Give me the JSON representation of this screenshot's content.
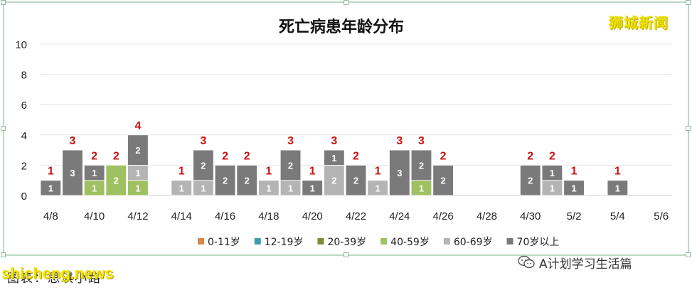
{
  "chart_data": {
    "type": "bar",
    "title": "死亡病患年龄分布",
    "xlabel": "",
    "ylabel": "",
    "ylim": [
      0,
      10
    ],
    "yticks": [
      "0",
      "2",
      "4",
      "6",
      "8",
      "10"
    ],
    "grid": true,
    "legend_position": "bottom",
    "categories": [
      "4/8",
      "4/9",
      "4/10",
      "4/11",
      "4/12",
      "4/13",
      "4/14",
      "4/15",
      "4/16",
      "4/17",
      "4/18",
      "4/19",
      "4/20",
      "4/21",
      "4/22",
      "4/23",
      "4/24",
      "4/25",
      "4/26",
      "4/27",
      "4/28",
      "4/29",
      "4/30",
      "5/1",
      "5/2",
      "5/3",
      "5/4",
      "5/5",
      "5/6"
    ],
    "tick_labels": [
      "4/8",
      "4/10",
      "4/12",
      "4/14",
      "4/16",
      "4/18",
      "4/20",
      "4/22",
      "4/24",
      "4/26",
      "4/28",
      "4/30",
      "5/2",
      "5/4",
      "5/6"
    ],
    "series": [
      {
        "name": "0-11岁",
        "color": "#d9864a",
        "values": [
          0,
          0,
          0,
          0,
          0,
          0,
          0,
          0,
          0,
          0,
          0,
          0,
          0,
          0,
          0,
          0,
          0,
          0,
          0,
          0,
          0,
          0,
          0,
          0,
          0,
          0,
          0,
          0,
          0
        ]
      },
      {
        "name": "12-19岁",
        "color": "#3e9bb0",
        "values": [
          0,
          0,
          0,
          0,
          0,
          0,
          0,
          0,
          0,
          0,
          0,
          0,
          0,
          0,
          0,
          0,
          0,
          0,
          0,
          0,
          0,
          0,
          0,
          0,
          0,
          0,
          0,
          0,
          0
        ]
      },
      {
        "name": "20-39岁",
        "color": "#7a8f3a",
        "values": [
          0,
          0,
          0,
          0,
          0,
          0,
          0,
          0,
          0,
          0,
          0,
          0,
          0,
          0,
          0,
          0,
          0,
          0,
          0,
          0,
          0,
          0,
          0,
          0,
          0,
          0,
          0,
          0,
          0
        ]
      },
      {
        "name": "40-59岁",
        "color": "#9fc162",
        "values": [
          0,
          0,
          1,
          2,
          1,
          0,
          0,
          0,
          0,
          0,
          0,
          0,
          0,
          0,
          0,
          0,
          0,
          1,
          0,
          0,
          0,
          0,
          0,
          0,
          0,
          0,
          0,
          0,
          0
        ]
      },
      {
        "name": "60-69岁",
        "color": "#b4b4b4",
        "values": [
          0,
          0,
          0,
          0,
          1,
          0,
          1,
          1,
          0,
          0,
          1,
          1,
          0,
          2,
          0,
          1,
          0,
          0,
          0,
          0,
          0,
          0,
          0,
          1,
          0,
          0,
          0,
          0,
          0
        ]
      },
      {
        "name": "70岁以上",
        "color": "#7a7a7a",
        "values": [
          1,
          3,
          1,
          0,
          2,
          0,
          0,
          2,
          2,
          2,
          0,
          2,
          1,
          1,
          2,
          0,
          3,
          2,
          2,
          0,
          0,
          0,
          2,
          1,
          1,
          0,
          1,
          0,
          0
        ]
      }
    ],
    "totals": [
      1,
      3,
      2,
      2,
      4,
      0,
      1,
      3,
      2,
      2,
      1,
      3,
      1,
      3,
      2,
      1,
      3,
      3,
      2,
      0,
      0,
      0,
      2,
      2,
      1,
      0,
      1,
      0,
      0
    ],
    "total_label_color": "#cc1111"
  },
  "watermark_top": "狮城新闻",
  "watermark_bottom": "shicheng.news",
  "caption": "图表：思琪小路",
  "wechat_account": "A计划学习生活篇"
}
